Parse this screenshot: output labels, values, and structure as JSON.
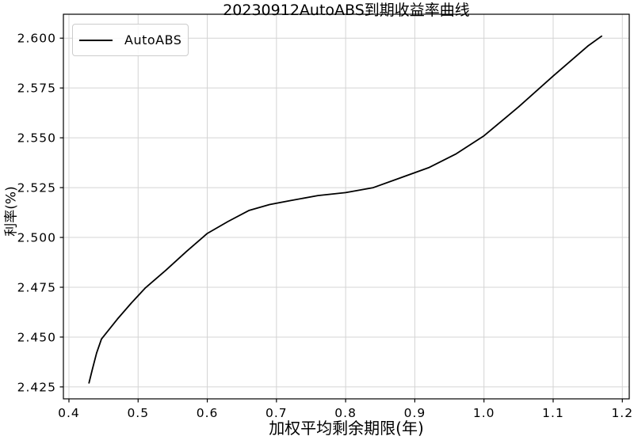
{
  "colors": {
    "line": "#000000",
    "grid": "#d4d4d4",
    "spine": "#000000",
    "background": "#ffffff",
    "legend_border": "#cccccc"
  },
  "chart_data": {
    "type": "line",
    "title": "20230912AutoABS到期收益率曲线",
    "xlabel": "加权平均剩余期限(年)",
    "ylabel": "利率(%)",
    "grid": true,
    "legend_position": "upper left",
    "xlim": [
      0.392,
      1.21
    ],
    "ylim": [
      2.419,
      2.612
    ],
    "x_ticks": [
      0.4,
      0.5,
      0.6,
      0.7,
      0.8,
      0.9,
      1.0,
      1.1,
      1.2
    ],
    "x_tick_labels": [
      "0.4",
      "0.5",
      "0.6",
      "0.7",
      "0.8",
      "0.9",
      "1.0",
      "1.1",
      "1.2"
    ],
    "y_ticks": [
      2.425,
      2.45,
      2.475,
      2.5,
      2.525,
      2.55,
      2.575,
      2.6
    ],
    "y_tick_labels": [
      "2.425",
      "2.450",
      "2.475",
      "2.500",
      "2.525",
      "2.550",
      "2.575",
      "2.600"
    ],
    "series": [
      {
        "name": "AutoABS",
        "color": "#000000",
        "x": [
          0.429,
          0.434,
          0.44,
          0.447,
          0.455,
          0.47,
          0.49,
          0.51,
          0.54,
          0.57,
          0.6,
          0.63,
          0.66,
          0.69,
          0.72,
          0.76,
          0.8,
          0.84,
          0.88,
          0.92,
          0.96,
          1.0,
          1.05,
          1.1,
          1.15,
          1.17
        ],
        "y": [
          2.427,
          2.434,
          2.442,
          2.449,
          2.4525,
          2.459,
          2.467,
          2.4745,
          2.4835,
          2.493,
          2.502,
          2.508,
          2.5135,
          2.5165,
          2.5185,
          2.521,
          2.5225,
          2.525,
          2.53,
          2.535,
          2.542,
          2.551,
          2.5655,
          2.581,
          2.596,
          2.601
        ]
      }
    ]
  },
  "legend": {
    "label": "AutoABS"
  }
}
